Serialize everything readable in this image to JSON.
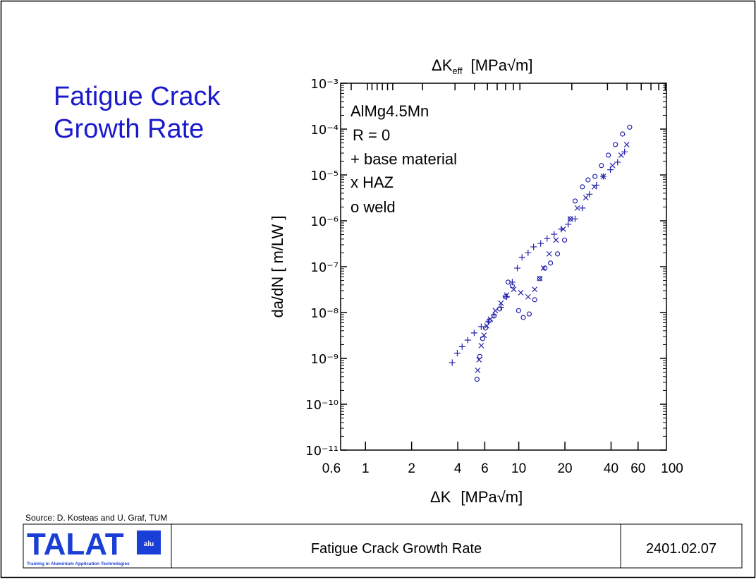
{
  "slide": {
    "title": [
      "Fatigue Crack",
      "Growth Rate"
    ],
    "source": "Source: D. Kosteas and U. Graf, TUM",
    "logo": {
      "name": "TALAT",
      "badge": "alu",
      "tagline": "Training in Aluminium Application Technologies"
    },
    "footer_title": "Fatigue Crack Growth Rate",
    "footer_code": "2401.02.07"
  },
  "chart_data": {
    "type": "scatter",
    "top_axis_label": {
      "symbol": "ΔK",
      "sub": "eff",
      "unit": "[MPa√m]"
    },
    "x_label": {
      "symbol": "ΔK",
      "unit": "[MPa√m]"
    },
    "y_label": "da/dN  [ m/LW ]",
    "annotations": [
      "AlMg4.5Mn",
      "R = 0"
    ],
    "x_log": true,
    "y_log": true,
    "xlim": [
      0.6,
      100
    ],
    "ylim": [
      1e-11,
      0.001
    ],
    "xticks": [
      0.6,
      1,
      2,
      4,
      6,
      10,
      20,
      40,
      60,
      100
    ],
    "yticks": [
      {
        "value": 0.001,
        "label": "10⁻³"
      },
      {
        "value": 0.0001,
        "label": "10⁻⁴"
      },
      {
        "value": 1e-05,
        "label": "10⁻⁵"
      },
      {
        "value": 1e-06,
        "label": "10⁻⁶"
      },
      {
        "value": 1e-07,
        "label": "10⁻⁷"
      },
      {
        "value": 1e-08,
        "label": "10⁻⁸"
      },
      {
        "value": 1e-09,
        "label": "10⁻⁹"
      },
      {
        "value": 1e-10,
        "label": "10⁻¹⁰"
      },
      {
        "value": 1e-11,
        "label": "10⁻¹¹"
      }
    ],
    "series": [
      {
        "name": "+ base material",
        "marker": "plus",
        "color": "#2222aa",
        "x": [
          3.68,
          3.97,
          4.27,
          4.65,
          5.12,
          5.69,
          6.33,
          6.89,
          7.66,
          8.34,
          9.07,
          9.78,
          10.5,
          11.5,
          12.5,
          13.9,
          15.3,
          17.0,
          18.9,
          21.0,
          23.3,
          26.0,
          28.9,
          32.1,
          35.6,
          39.6,
          44.1,
          49.0
        ],
        "values": [
          8.1e-10,
          1.3e-09,
          1.8e-09,
          2.5e-09,
          3.6e-09,
          4.9e-09,
          6.3e-09,
          8.9e-09,
          1.3e-08,
          2.2e-08,
          4.6e-08,
          9.3e-08,
          1.6e-07,
          2e-07,
          2.7e-07,
          3.2e-07,
          4.1e-07,
          5.1e-07,
          6.6e-07,
          8.4e-07,
          1.1e-06,
          1.9e-06,
          3.8e-06,
          6e-06,
          9.3e-06,
          1.3e-05,
          1.9e-05,
          3.2e-05
        ]
      },
      {
        "name": "x HAZ",
        "marker": "cross",
        "color": "#2222aa",
        "x": [
          5.4,
          5.51,
          5.69,
          5.93,
          6.19,
          6.53,
          7.03,
          7.66,
          8.34,
          9.27,
          10.3,
          11.5,
          12.7,
          13.7,
          14.5,
          15.8,
          17.5,
          19.5,
          21.7,
          24.1,
          27.4,
          31.1,
          35.6,
          40.9,
          46.5,
          50.6
        ],
        "values": [
          5.5e-10,
          9.3e-10,
          1.9e-09,
          3.2e-09,
          5.1e-09,
          7.2e-09,
          1.1e-08,
          1.6e-08,
          2.4e-08,
          3.2e-08,
          2.7e-08,
          2.2e-08,
          3.2e-08,
          5.5e-08,
          9.3e-08,
          1.9e-07,
          3.8e-07,
          6.6e-07,
          1.1e-06,
          1.9e-06,
          3.2e-06,
          5.5e-06,
          9.3e-06,
          1.6e-05,
          2.7e-05,
          4.6e-05
        ]
      },
      {
        "name": "o weld",
        "marker": "circle",
        "color": "#2222aa",
        "x": [
          5.34,
          5.57,
          5.81,
          6.07,
          6.4,
          6.89,
          7.5,
          8.16,
          8.52,
          9.07,
          9.98,
          10.7,
          11.7,
          12.7,
          13.7,
          14.8,
          16.1,
          17.9,
          19.9,
          21.7,
          23.3,
          26.0,
          28.3,
          31.4,
          34.6,
          38.4,
          42.7,
          47.5,
          52.9
        ],
        "values": [
          3.5e-10,
          1.1e-09,
          2.7e-09,
          4.6e-09,
          6.6e-09,
          8.4e-09,
          1.2e-08,
          2.2e-08,
          4.6e-08,
          3.8e-08,
          1.1e-08,
          7.8e-09,
          9.3e-09,
          1.9e-08,
          5.5e-08,
          9.3e-08,
          1.2e-07,
          1.9e-07,
          3.8e-07,
          1.1e-06,
          2.7e-06,
          5.5e-06,
          7.8e-06,
          9.3e-06,
          1.6e-05,
          2.7e-05,
          4.6e-05,
          7.8e-05,
          0.00011
        ]
      }
    ]
  }
}
